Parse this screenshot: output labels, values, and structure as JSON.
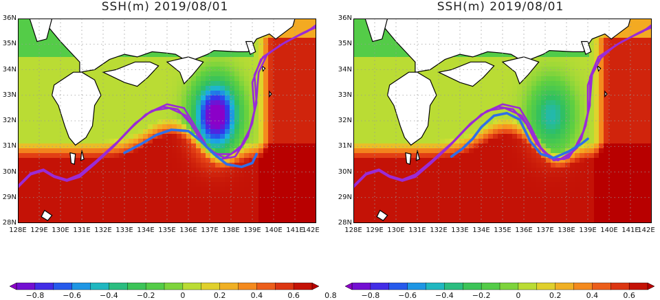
{
  "panels": [
    {
      "title": "SSH(m)  2019/08/01",
      "low_strength": 1.0,
      "blue_path": [
        [
          133.0,
          30.75
        ],
        [
          133.8,
          31.1
        ],
        [
          134.5,
          31.45
        ],
        [
          135.2,
          31.65
        ],
        [
          136.0,
          31.6
        ],
        [
          136.6,
          31.2
        ],
        [
          137.2,
          30.7
        ],
        [
          137.8,
          30.3
        ],
        [
          138.5,
          30.2
        ],
        [
          139.0,
          30.35
        ],
        [
          139.2,
          30.7
        ]
      ],
      "purple_paths": [
        [
          [
            128.0,
            29.4
          ],
          [
            128.6,
            29.9
          ],
          [
            129.2,
            30.05
          ],
          [
            129.7,
            29.8
          ],
          [
            130.3,
            29.65
          ],
          [
            130.9,
            29.8
          ],
          [
            131.6,
            30.3
          ],
          [
            132.5,
            31.0
          ],
          [
            133.3,
            31.7
          ],
          [
            134.0,
            32.25
          ],
          [
            134.8,
            32.55
          ],
          [
            135.5,
            32.45
          ],
          [
            136.1,
            31.9
          ],
          [
            136.7,
            31.1
          ],
          [
            137.3,
            30.7
          ],
          [
            138.0,
            30.7
          ],
          [
            138.6,
            31.1
          ],
          [
            139.0,
            31.9
          ],
          [
            139.2,
            32.9
          ],
          [
            139.3,
            33.9
          ],
          [
            139.7,
            34.6
          ],
          [
            140.6,
            35.1
          ],
          [
            141.6,
            35.5
          ],
          [
            142.0,
            35.75
          ]
        ],
        [
          [
            128.0,
            29.4
          ],
          [
            128.6,
            29.9
          ],
          [
            129.2,
            30.05
          ],
          [
            129.7,
            29.8
          ],
          [
            130.3,
            29.65
          ],
          [
            130.9,
            29.85
          ],
          [
            131.7,
            30.4
          ],
          [
            132.6,
            31.1
          ],
          [
            133.4,
            31.8
          ],
          [
            134.2,
            32.35
          ],
          [
            135.0,
            32.65
          ],
          [
            135.8,
            32.5
          ],
          [
            136.3,
            31.8
          ],
          [
            136.9,
            30.95
          ],
          [
            137.5,
            30.5
          ],
          [
            138.2,
            30.6
          ],
          [
            138.8,
            31.4
          ],
          [
            139.1,
            32.4
          ],
          [
            139.0,
            33.5
          ],
          [
            139.4,
            34.4
          ],
          [
            140.3,
            34.95
          ],
          [
            141.3,
            35.4
          ],
          [
            142.0,
            35.7
          ]
        ],
        [
          [
            128.0,
            29.45
          ],
          [
            128.6,
            29.95
          ],
          [
            129.2,
            30.1
          ],
          [
            129.7,
            29.85
          ],
          [
            130.3,
            29.7
          ],
          [
            130.9,
            29.9
          ],
          [
            131.7,
            30.45
          ],
          [
            132.7,
            31.2
          ],
          [
            133.5,
            31.9
          ],
          [
            134.3,
            32.4
          ],
          [
            135.1,
            32.5
          ],
          [
            135.9,
            32.2
          ],
          [
            136.4,
            31.5
          ],
          [
            137.0,
            30.85
          ],
          [
            137.7,
            30.55
          ],
          [
            138.4,
            30.9
          ],
          [
            138.9,
            31.7
          ],
          [
            139.2,
            32.7
          ],
          [
            139.1,
            33.8
          ],
          [
            139.5,
            34.5
          ],
          [
            140.4,
            35.0
          ],
          [
            141.4,
            35.45
          ],
          [
            142.0,
            35.65
          ]
        ]
      ]
    },
    {
      "title": "SSH(m)  2019/08/01",
      "low_strength": 0.45,
      "blue_path": [
        [
          132.6,
          30.6
        ],
        [
          133.1,
          30.9
        ],
        [
          133.6,
          31.3
        ],
        [
          134.0,
          31.75
        ],
        [
          134.6,
          32.2
        ],
        [
          135.2,
          32.3
        ],
        [
          135.8,
          32.05
        ],
        [
          136.3,
          31.2
        ],
        [
          136.8,
          30.7
        ],
        [
          137.4,
          30.55
        ],
        [
          138.1,
          30.8
        ],
        [
          138.7,
          31.1
        ],
        [
          139.0,
          31.3
        ]
      ],
      "purple_paths": [
        [
          [
            128.0,
            29.4
          ],
          [
            128.6,
            29.9
          ],
          [
            129.2,
            30.05
          ],
          [
            129.7,
            29.8
          ],
          [
            130.3,
            29.65
          ],
          [
            130.9,
            29.8
          ],
          [
            131.6,
            30.3
          ],
          [
            132.5,
            31.0
          ],
          [
            133.3,
            31.7
          ],
          [
            134.0,
            32.25
          ],
          [
            134.8,
            32.55
          ],
          [
            135.5,
            32.45
          ],
          [
            136.1,
            31.9
          ],
          [
            136.6,
            31.1
          ],
          [
            137.2,
            30.55
          ],
          [
            137.9,
            30.5
          ],
          [
            138.5,
            30.95
          ],
          [
            138.9,
            31.8
          ],
          [
            139.1,
            32.8
          ],
          [
            139.2,
            33.8
          ],
          [
            139.7,
            34.6
          ],
          [
            140.6,
            35.1
          ],
          [
            141.6,
            35.5
          ],
          [
            142.0,
            35.75
          ]
        ],
        [
          [
            128.0,
            29.4
          ],
          [
            128.6,
            29.9
          ],
          [
            129.2,
            30.05
          ],
          [
            129.7,
            29.8
          ],
          [
            130.3,
            29.65
          ],
          [
            130.9,
            29.85
          ],
          [
            131.7,
            30.4
          ],
          [
            132.6,
            31.1
          ],
          [
            133.4,
            31.8
          ],
          [
            134.2,
            32.35
          ],
          [
            135.0,
            32.65
          ],
          [
            135.8,
            32.5
          ],
          [
            136.3,
            31.8
          ],
          [
            136.8,
            30.95
          ],
          [
            137.4,
            30.45
          ],
          [
            138.1,
            30.55
          ],
          [
            138.7,
            31.3
          ],
          [
            139.0,
            32.3
          ],
          [
            139.0,
            33.4
          ],
          [
            139.4,
            34.3
          ],
          [
            140.3,
            34.95
          ],
          [
            141.3,
            35.4
          ],
          [
            142.0,
            35.7
          ]
        ],
        [
          [
            128.0,
            29.45
          ],
          [
            128.6,
            29.95
          ],
          [
            129.2,
            30.1
          ],
          [
            129.7,
            29.85
          ],
          [
            130.3,
            29.7
          ],
          [
            130.9,
            29.9
          ],
          [
            131.7,
            30.45
          ],
          [
            132.7,
            31.2
          ],
          [
            133.5,
            31.9
          ],
          [
            134.3,
            32.4
          ],
          [
            135.1,
            32.5
          ],
          [
            135.9,
            32.2
          ],
          [
            136.4,
            31.5
          ],
          [
            136.9,
            30.8
          ],
          [
            137.6,
            30.45
          ],
          [
            138.3,
            30.8
          ],
          [
            138.8,
            31.6
          ],
          [
            139.1,
            32.6
          ],
          [
            139.1,
            33.7
          ],
          [
            139.5,
            34.5
          ],
          [
            140.4,
            35.0
          ],
          [
            141.4,
            35.45
          ],
          [
            142.0,
            35.65
          ]
        ]
      ]
    }
  ],
  "axes": {
    "lon_range": [
      128,
      142
    ],
    "lat_range": [
      28,
      36
    ],
    "lon_labels": [
      "128E",
      "129E",
      "130E",
      "131E",
      "132E",
      "133E",
      "134E",
      "135E",
      "136E",
      "137E",
      "138E",
      "139E",
      "140E",
      "141E",
      "142E"
    ],
    "lat_labels": [
      "36N",
      "35N",
      "34N",
      "33N",
      "32N",
      "31N",
      "30N",
      "29N",
      "28N"
    ]
  },
  "colorbar": {
    "range": [
      -0.8,
      0.8
    ],
    "labels": [
      "−0.8",
      "−0.6",
      "−0.4",
      "−0.2",
      "0",
      "0.2",
      "0.4",
      "0.6",
      "0.8"
    ],
    "stops": [
      "#8b00c8",
      "#2a3cf0",
      "#1ab4e0",
      "#30c060",
      "#60d040",
      "#d8e030",
      "#f8a020",
      "#e84818",
      "#b80000"
    ]
  },
  "colors": {
    "path_blue": "#2f6fe8",
    "path_purple": "#9a2bd6",
    "land": "#ffffff",
    "grid": "#9a9a9a"
  }
}
